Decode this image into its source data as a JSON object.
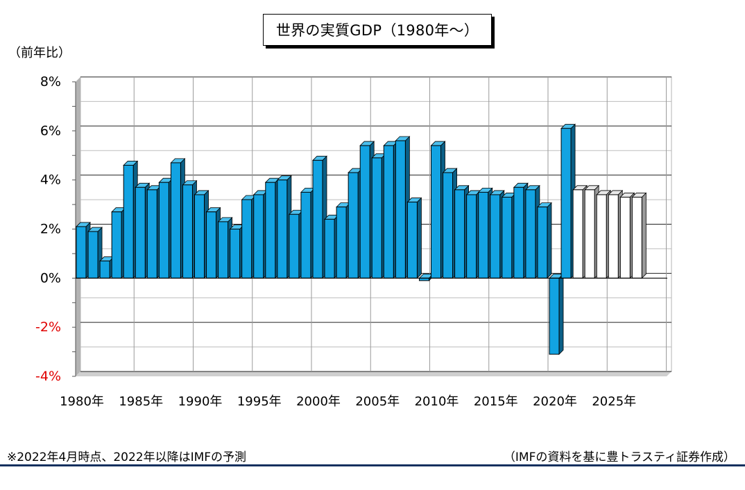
{
  "header": {
    "title": "世界の実質GDP（1980年～）",
    "unit_label": "（前年比）"
  },
  "footer": {
    "note": "※2022年4月時点、2022年以降はIMFの予測",
    "source": "（IMFの資料を基に豊トラスティ証券作成）"
  },
  "colors": {
    "actual_bar": "#12a3e2",
    "forecast_bar": "#ffffff",
    "negative_tick": "#e00000",
    "frame": "#b3b3b3",
    "rule": "#13305e"
  },
  "chart_data": {
    "type": "bar",
    "title": "世界の実質GDP（1980年～）",
    "ylabel": "（前年比）",
    "ylim": [
      -4,
      8
    ],
    "y_ticks": [
      "8%",
      "6%",
      "4%",
      "2%",
      "0%",
      "-2%",
      "-4%"
    ],
    "x_tick_labels": [
      "1980年",
      "1985年",
      "1990年",
      "1995年",
      "2000年",
      "2005年",
      "2010年",
      "2015年",
      "2020年",
      "2025年"
    ],
    "grid": true,
    "forecast_from": 2022,
    "categories": [
      1980,
      1981,
      1982,
      1983,
      1984,
      1985,
      1986,
      1987,
      1988,
      1989,
      1990,
      1991,
      1992,
      1993,
      1994,
      1995,
      1996,
      1997,
      1998,
      1999,
      2000,
      2001,
      2002,
      2003,
      2004,
      2005,
      2006,
      2007,
      2008,
      2009,
      2010,
      2011,
      2012,
      2013,
      2014,
      2015,
      2016,
      2017,
      2018,
      2019,
      2020,
      2021,
      2022,
      2023,
      2024,
      2025,
      2026,
      2027
    ],
    "values": [
      2.1,
      1.9,
      0.7,
      2.7,
      4.6,
      3.7,
      3.6,
      3.9,
      4.7,
      3.8,
      3.4,
      2.7,
      2.3,
      2.0,
      3.2,
      3.4,
      3.9,
      4.0,
      2.6,
      3.5,
      4.8,
      2.4,
      2.9,
      4.3,
      5.4,
      4.9,
      5.4,
      5.6,
      3.1,
      -0.1,
      5.4,
      4.3,
      3.6,
      3.4,
      3.5,
      3.4,
      3.3,
      3.7,
      3.6,
      2.9,
      -3.1,
      6.1,
      3.6,
      3.6,
      3.4,
      3.4,
      3.3,
      3.3
    ]
  }
}
